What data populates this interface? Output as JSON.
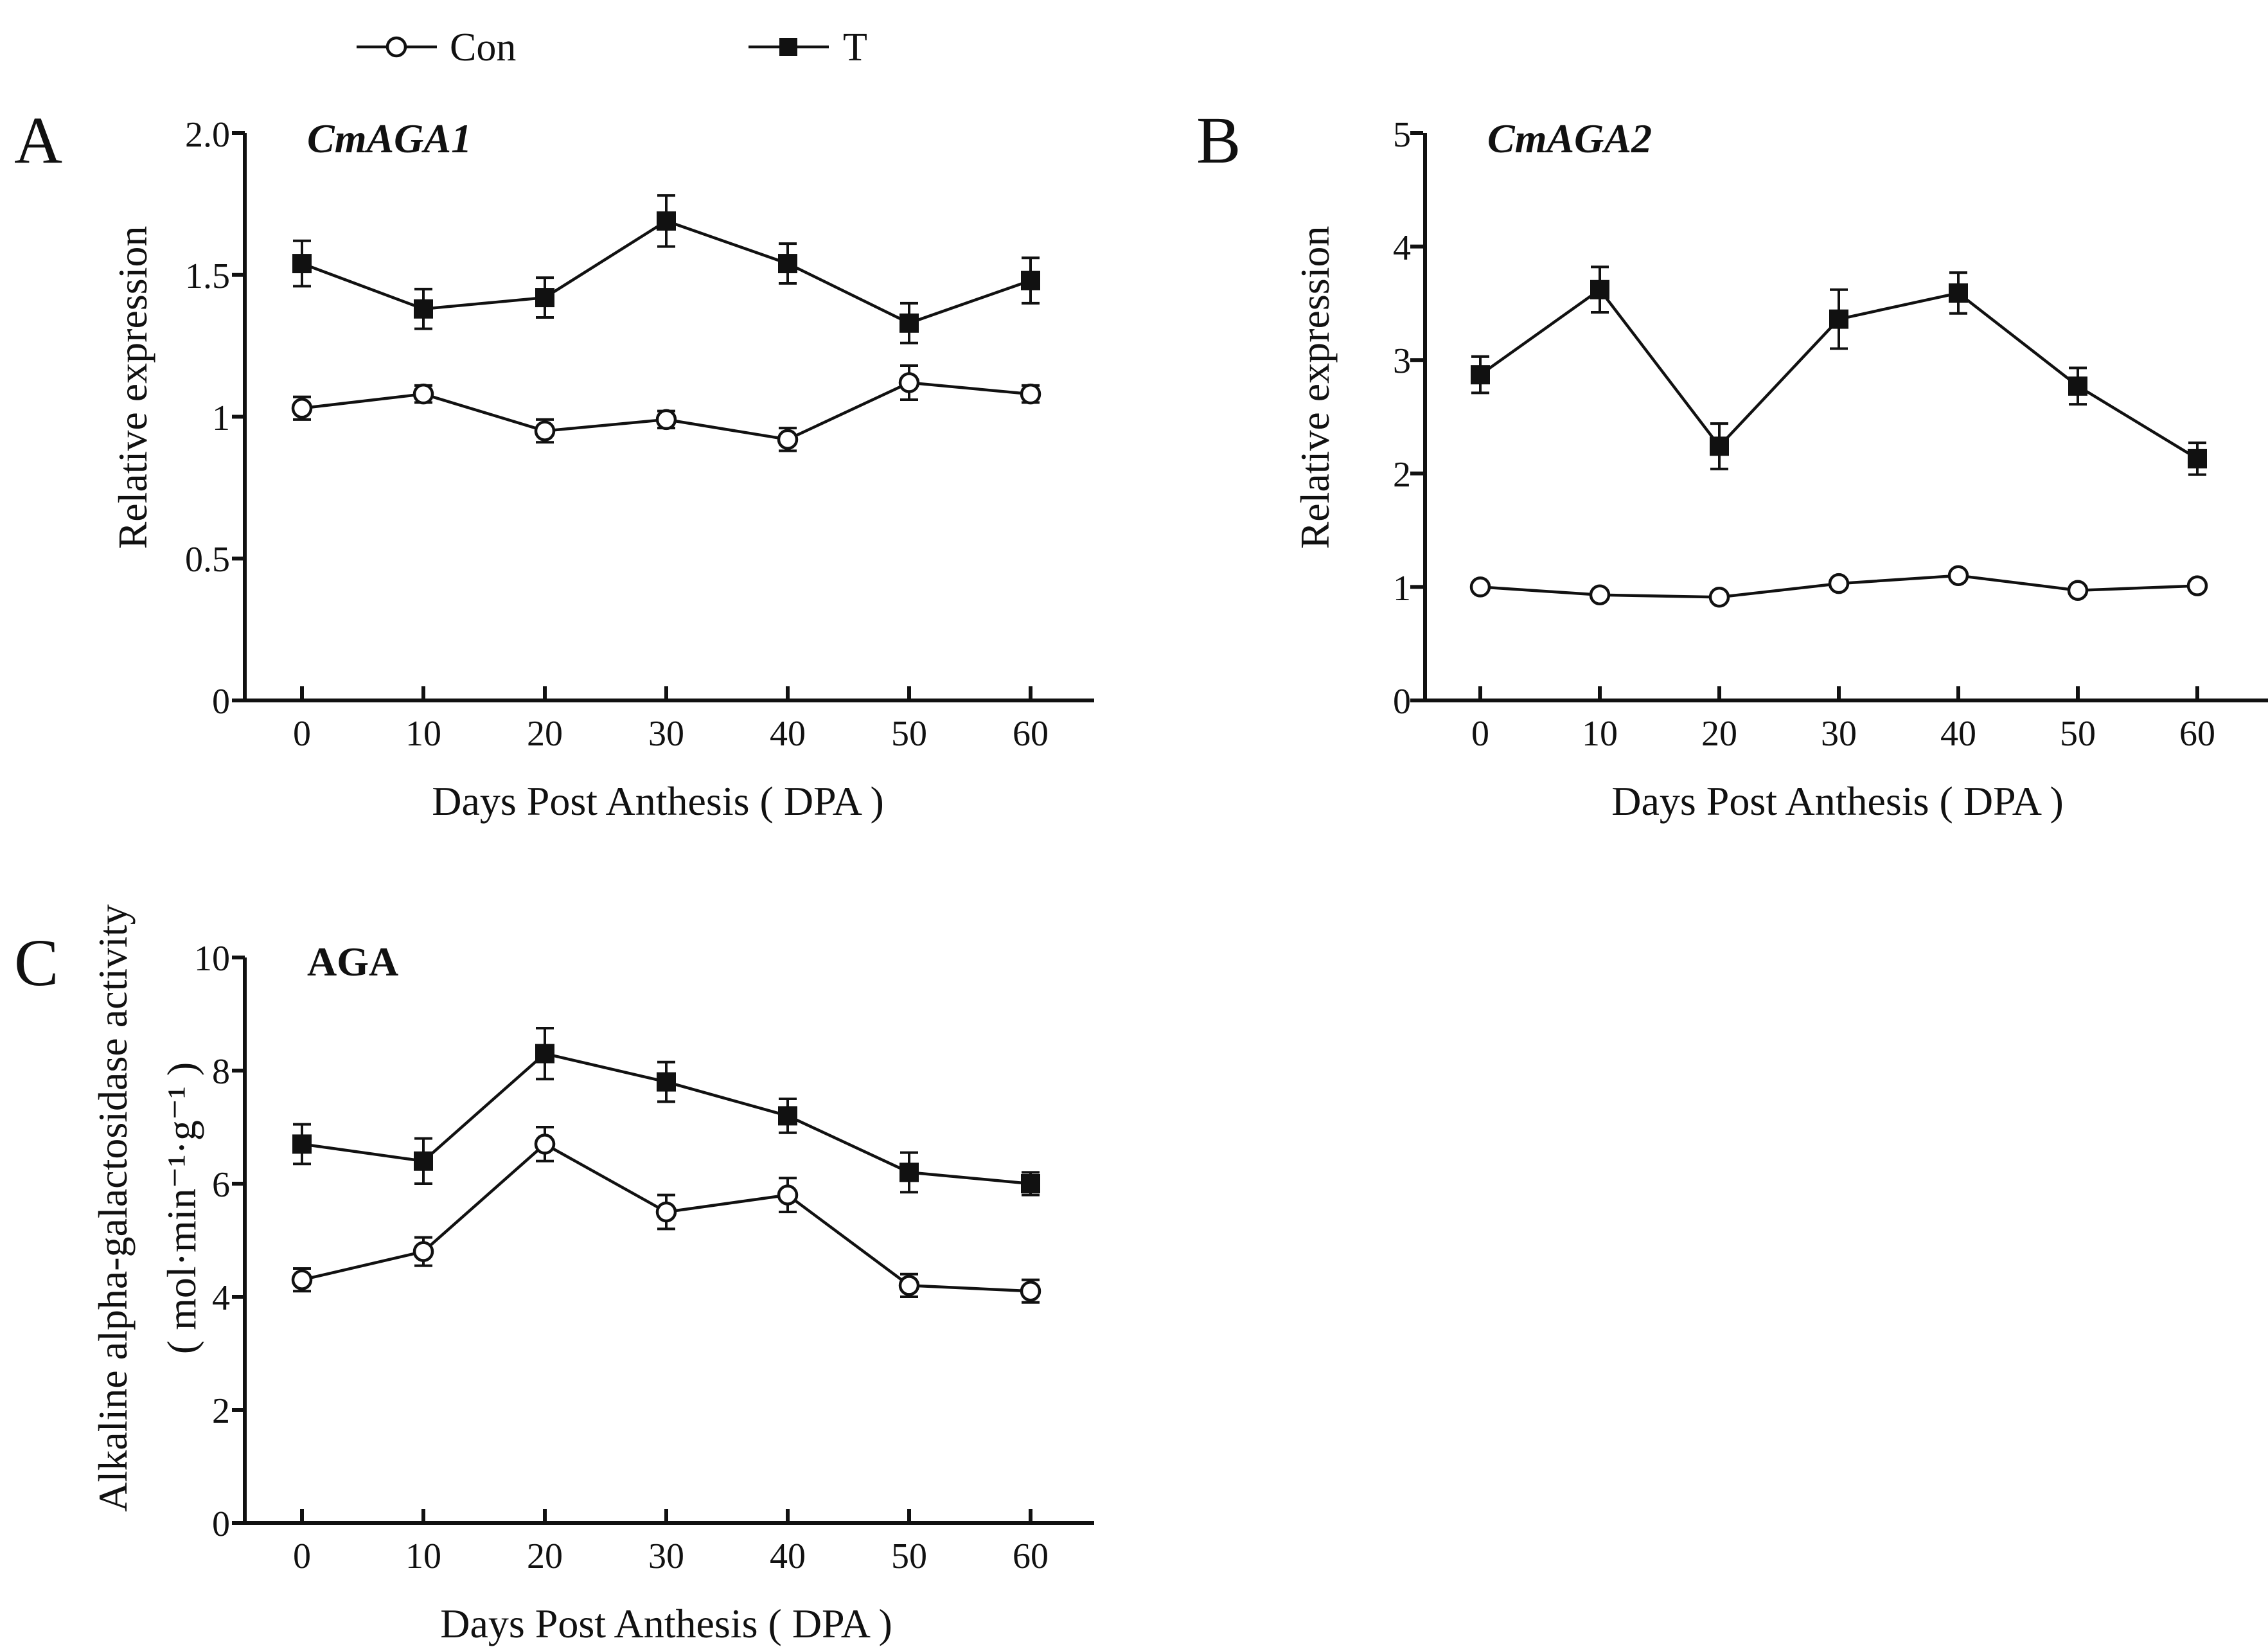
{
  "legend": [
    {
      "name": "Con",
      "marker": "open-circle"
    },
    {
      "name": "T",
      "marker": "filled-square"
    }
  ],
  "chart_data": [
    {
      "type": "line",
      "panel_letter": "A",
      "title": "CmAGA1",
      "title_italic": true,
      "xlabel": "Days Post Anthesis ( DPA )",
      "ylabel": "Relative expression",
      "x": [
        0,
        10,
        20,
        30,
        40,
        50,
        60
      ],
      "ylim": [
        0,
        2
      ],
      "yticks": [
        0,
        0.5,
        1,
        1.5,
        2
      ],
      "ytick_labels": [
        "0",
        "0.5",
        "1",
        "1.5",
        "2.0"
      ],
      "series": [
        {
          "name": "Con",
          "marker": "open-circle",
          "values": [
            1.03,
            1.08,
            0.95,
            0.99,
            0.92,
            1.12,
            1.08
          ],
          "errors": [
            0.04,
            0.03,
            0.04,
            0.03,
            0.04,
            0.06,
            0.03
          ]
        },
        {
          "name": "T",
          "marker": "filled-square",
          "values": [
            1.54,
            1.38,
            1.42,
            1.69,
            1.54,
            1.33,
            1.48
          ],
          "errors": [
            0.08,
            0.07,
            0.07,
            0.09,
            0.07,
            0.07,
            0.08
          ]
        }
      ],
      "grid": false
    },
    {
      "type": "line",
      "panel_letter": "B",
      "title": "CmAGA2",
      "title_italic": true,
      "xlabel": "Days Post Anthesis ( DPA )",
      "ylabel": "Relative expression",
      "x": [
        0,
        10,
        20,
        30,
        40,
        50,
        60
      ],
      "ylim": [
        0,
        5
      ],
      "yticks": [
        0,
        1,
        2,
        3,
        4,
        5
      ],
      "ytick_labels": [
        "0",
        "1",
        "2",
        "3",
        "4",
        "5"
      ],
      "series": [
        {
          "name": "Con",
          "marker": "open-circle",
          "values": [
            1.0,
            0.93,
            0.91,
            1.03,
            1.1,
            0.97,
            1.01
          ],
          "errors": [
            0,
            0,
            0,
            0,
            0,
            0,
            0
          ]
        },
        {
          "name": "T",
          "marker": "filled-square",
          "values": [
            2.87,
            3.62,
            2.24,
            3.36,
            3.59,
            2.77,
            2.13
          ],
          "errors": [
            0.16,
            0.2,
            0.2,
            0.26,
            0.18,
            0.16,
            0.14
          ]
        }
      ],
      "grid": false
    },
    {
      "type": "line",
      "panel_letter": "C",
      "title": "AGA",
      "title_italic": false,
      "xlabel": "Days Post Anthesis ( DPA )",
      "ylabel": "Alkaline alpha-galactosidase activity",
      "ylabel_unit": "( mol·min⁻¹·g⁻¹ )",
      "x": [
        0,
        10,
        20,
        30,
        40,
        50,
        60
      ],
      "ylim": [
        0,
        10
      ],
      "yticks": [
        0,
        2,
        4,
        6,
        8,
        10
      ],
      "ytick_labels": [
        "0",
        "2",
        "4",
        "6",
        "8",
        "10"
      ],
      "series": [
        {
          "name": "Con",
          "marker": "open-circle",
          "values": [
            4.3,
            4.8,
            6.7,
            5.5,
            5.8,
            4.2,
            4.1
          ],
          "errors": [
            0.2,
            0.25,
            0.3,
            0.3,
            0.3,
            0.2,
            0.2
          ]
        },
        {
          "name": "T",
          "marker": "filled-square",
          "values": [
            6.7,
            6.4,
            8.3,
            7.8,
            7.2,
            6.2,
            6.0
          ],
          "errors": [
            0.35,
            0.4,
            0.45,
            0.35,
            0.3,
            0.35,
            0.2
          ]
        }
      ],
      "grid": false
    }
  ]
}
